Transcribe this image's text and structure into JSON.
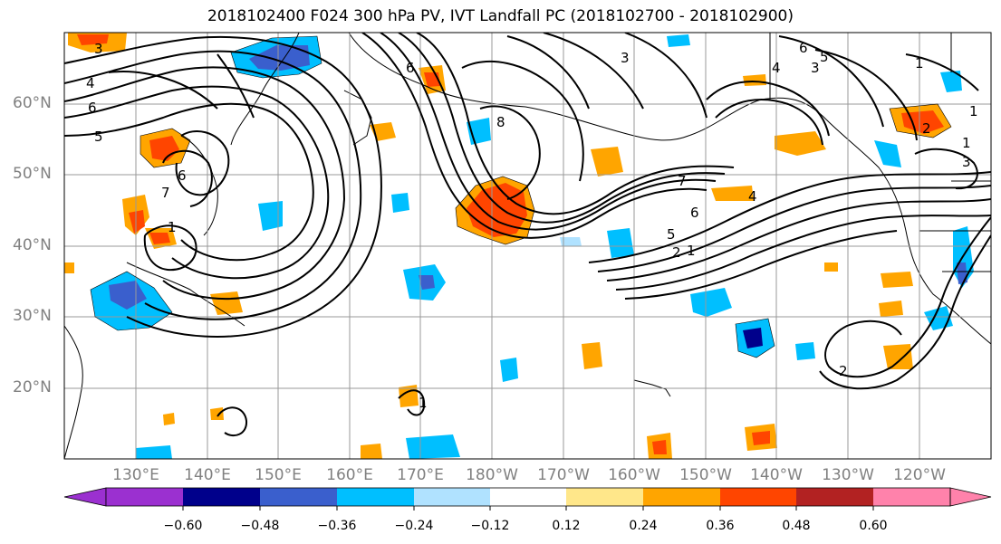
{
  "title": "2018102400 F024 300 hPa PV, IVT Landfall PC (2018102700 - 2018102900)",
  "lat_labels": [
    "60°N",
    "50°N",
    "40°N",
    "30°N",
    "20°N"
  ],
  "lon_labels": [
    "130°E",
    "140°E",
    "150°E",
    "160°E",
    "170°E",
    "180°W",
    "170°W",
    "160°W",
    "150°W",
    "140°W",
    "130°W",
    "120°W"
  ],
  "colorbar": {
    "ticks": [
      "−0.60",
      "−0.48",
      "−0.36",
      "−0.24",
      "−0.12",
      "0.12",
      "0.24",
      "0.36",
      "0.48",
      "0.60"
    ],
    "colors": [
      "#9b30d0",
      "#00008b",
      "#3a5fcd",
      "#00bfff",
      "#b0e2ff",
      "#ffffff",
      "#ffe78a",
      "#ffa500",
      "#ff4500",
      "#b22222",
      "#ff82ab"
    ]
  },
  "contour_labels": [
    "3",
    "4",
    "6",
    "5",
    "6",
    "7",
    "1",
    "6",
    "8",
    "3",
    "7",
    "6",
    "5",
    "1",
    "2",
    "1",
    "6",
    "5",
    "4",
    "3",
    "1",
    "2",
    "1",
    "3",
    "2",
    "1",
    "4"
  ],
  "shading_colors": {
    "orange": "#ffa500",
    "red": "#ff4500",
    "yellow": "#ffe78a",
    "cyan": "#00bfff",
    "lightblue": "#b0e2ff",
    "blue": "#3a5fcd",
    "navy": "#00008b"
  }
}
